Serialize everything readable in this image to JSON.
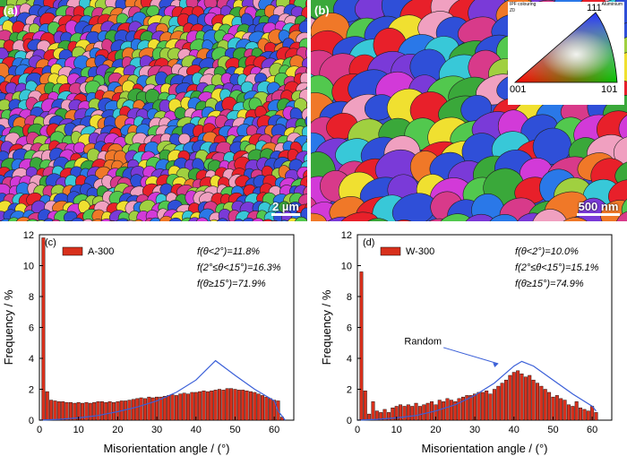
{
  "ebsd": {
    "a": {
      "label": "(a)",
      "scale_bar": "2 µm"
    },
    "b": {
      "label": "(b)",
      "scale_bar": "500 nm"
    },
    "ipf_key": {
      "title_left": "IPF colouring",
      "title_right": "Aluminium",
      "sub_left": "Z0",
      "corner_top": "111",
      "corner_bl": "001",
      "corner_br": "101"
    }
  },
  "chart_data": [
    {
      "type": "bar",
      "panel": "(c)",
      "legend": "A-300",
      "xlabel": "Misorientation angle / (°)",
      "ylabel": "Frequency / %",
      "xlim": [
        0,
        65
      ],
      "ylim": [
        0,
        12
      ],
      "xticks": [
        0,
        10,
        20,
        30,
        40,
        50,
        60
      ],
      "yticks": [
        0,
        2,
        4,
        6,
        8,
        10,
        12
      ],
      "annotations": [
        "f(θ<2°)=11.8%",
        "f(2°≤θ<15°)=16.3%",
        "f(θ≥15°)=71.9%"
      ],
      "x": [
        1,
        2,
        3,
        4,
        5,
        6,
        7,
        8,
        9,
        10,
        11,
        12,
        13,
        14,
        15,
        16,
        17,
        18,
        19,
        20,
        21,
        22,
        23,
        24,
        25,
        26,
        27,
        28,
        29,
        30,
        31,
        32,
        33,
        34,
        35,
        36,
        37,
        38,
        39,
        40,
        41,
        42,
        43,
        44,
        45,
        46,
        47,
        48,
        49,
        50,
        51,
        52,
        53,
        54,
        55,
        56,
        57,
        58,
        59,
        60,
        61,
        62
      ],
      "values": [
        11.8,
        1.85,
        1.3,
        1.25,
        1.2,
        1.2,
        1.15,
        1.15,
        1.1,
        1.15,
        1.1,
        1.15,
        1.1,
        1.15,
        1.2,
        1.2,
        1.15,
        1.2,
        1.15,
        1.2,
        1.25,
        1.25,
        1.3,
        1.35,
        1.4,
        1.45,
        1.4,
        1.5,
        1.45,
        1.5,
        1.5,
        1.55,
        1.6,
        1.65,
        1.6,
        1.7,
        1.75,
        1.7,
        1.8,
        1.8,
        1.85,
        1.9,
        1.85,
        1.9,
        1.95,
        2.0,
        1.95,
        2.05,
        2.05,
        2.0,
        1.95,
        1.95,
        1.9,
        1.85,
        1.8,
        1.7,
        1.6,
        1.5,
        1.4,
        1.3,
        1.25,
        0.2
      ],
      "random_curve": {
        "x": [
          0,
          5,
          10,
          15,
          20,
          25,
          30,
          35,
          40,
          45,
          50,
          55,
          60,
          61,
          62.8
        ],
        "y": [
          0,
          0.05,
          0.15,
          0.3,
          0.55,
          0.85,
          1.25,
          1.8,
          2.6,
          3.85,
          2.9,
          2.0,
          1.25,
          0.6,
          0
        ]
      }
    },
    {
      "type": "bar",
      "panel": "(d)",
      "legend": "W-300",
      "xlabel": "Misorientation angle / (°)",
      "ylabel": "Frequency / %",
      "xlim": [
        0,
        65
      ],
      "ylim": [
        0,
        12
      ],
      "xticks": [
        0,
        10,
        20,
        30,
        40,
        50,
        60
      ],
      "yticks": [
        0,
        2,
        4,
        6,
        8,
        10,
        12
      ],
      "annotations": [
        "f(θ<2°)=10.0%",
        "f(2°≤θ<15°)=15.1%",
        "f(θ≥15°)=74.9%",
        "Random"
      ],
      "x": [
        1,
        2,
        3,
        4,
        5,
        6,
        7,
        8,
        9,
        10,
        11,
        12,
        13,
        14,
        15,
        16,
        17,
        18,
        19,
        20,
        21,
        22,
        23,
        24,
        25,
        26,
        27,
        28,
        29,
        30,
        31,
        32,
        33,
        34,
        35,
        36,
        37,
        38,
        39,
        40,
        41,
        42,
        43,
        44,
        45,
        46,
        47,
        48,
        49,
        50,
        51,
        52,
        53,
        54,
        55,
        56,
        57,
        58,
        59,
        60,
        61
      ],
      "values": [
        9.6,
        1.9,
        0.4,
        1.2,
        0.6,
        0.5,
        0.7,
        0.5,
        0.8,
        0.9,
        1.0,
        0.9,
        1.0,
        0.9,
        1.1,
        0.9,
        1.0,
        1.1,
        1.2,
        1.0,
        1.3,
        1.2,
        1.4,
        1.3,
        1.2,
        1.4,
        1.5,
        1.6,
        1.6,
        1.7,
        1.8,
        1.8,
        1.9,
        1.7,
        2.0,
        2.2,
        2.4,
        2.6,
        2.9,
        3.1,
        3.2,
        3.0,
        2.8,
        2.9,
        2.6,
        2.4,
        2.2,
        2.0,
        1.8,
        1.5,
        1.6,
        1.4,
        1.3,
        1.0,
        0.9,
        1.2,
        0.8,
        0.7,
        0.6,
        0.9,
        0.5
      ],
      "random_curve": {
        "x": [
          0,
          5,
          10,
          15,
          20,
          25,
          30,
          35,
          40,
          42,
          45,
          50,
          55,
          60,
          61
        ],
        "y": [
          0,
          0.05,
          0.15,
          0.3,
          0.6,
          1.0,
          1.6,
          2.4,
          3.5,
          3.8,
          3.5,
          2.6,
          1.7,
          0.9,
          0.6
        ]
      }
    }
  ]
}
